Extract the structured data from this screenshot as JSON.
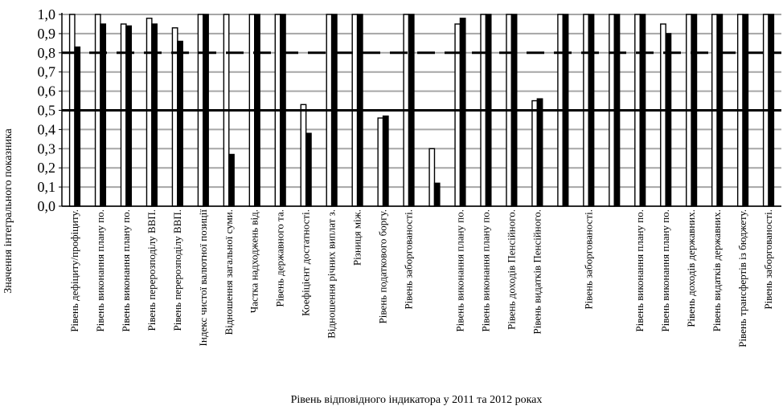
{
  "chart_data": {
    "type": "bar",
    "title": "",
    "xlabel": "Рівень відповідного індикатора у 2011 та 2012 роках",
    "ylabel": "Значення інтегрального показника",
    "ylim": [
      0,
      1
    ],
    "yticks": [
      "0,0",
      "0,1",
      "0,2",
      "0,3",
      "0,4",
      "0,5",
      "0,6",
      "0,7",
      "0,8",
      "0,9",
      "1,0"
    ],
    "grid": true,
    "reference_lines": [
      {
        "value": 0.8,
        "style": "dashed"
      },
      {
        "value": 0.5,
        "style": "solid"
      }
    ],
    "categories": [
      "Рівень дефіциту/профіциту.",
      "Рівень виконання плану по.",
      "Рівень виконання плану по.",
      "Рівень перерозподілу ВВП.",
      "Рівень перерозподілу ВВП.",
      "Індекс чистої валютної позиції",
      "Відношення загальної суми.",
      "Частка надходжень від.",
      "Рівень державного та.",
      "Коефіцієнт достатності.",
      "Відношення річних виплат з.",
      "Різниця між.",
      "Рівень податкового боргу.",
      "Рівень заборгованості.",
      "",
      "Рівень виконання плану по.",
      "Рівень виконання плану по.",
      "Рівень доходів Пенсійного.",
      "Рівень видатків Пенсійного.",
      "",
      "Рівень заборгованості.",
      "",
      "Рівень виконання плану по.",
      "Рівень виконання плану по.",
      "Рівень доходів державних.",
      "Рівень видатків державних.",
      "Рівень трансфертів із бюджету.",
      "Рівень заборгованості."
    ],
    "series": [
      {
        "values": [
          1.0,
          1.0,
          0.95,
          0.98,
          0.93,
          1.0,
          1.0,
          1.0,
          1.0,
          0.53,
          1.0,
          1.0,
          0.46,
          1.0,
          0.3,
          0.95,
          1.0,
          1.0,
          0.55,
          1.0,
          1.0,
          1.0,
          1.0,
          0.95,
          1.0,
          1.0,
          1.0,
          1.0
        ]
      },
      {
        "values": [
          0.83,
          0.95,
          0.94,
          0.95,
          0.86,
          1.0,
          0.27,
          1.0,
          1.0,
          0.38,
          1.0,
          1.0,
          0.47,
          1.0,
          0.12,
          0.98,
          1.0,
          1.0,
          0.56,
          1.0,
          1.0,
          1.0,
          1.0,
          0.9,
          1.0,
          1.0,
          1.0,
          1.0
        ]
      }
    ],
    "colors": {
      "series_2011": "#ffffff",
      "series_2012": "#000000",
      "grid": "#a6a6a6"
    }
  }
}
